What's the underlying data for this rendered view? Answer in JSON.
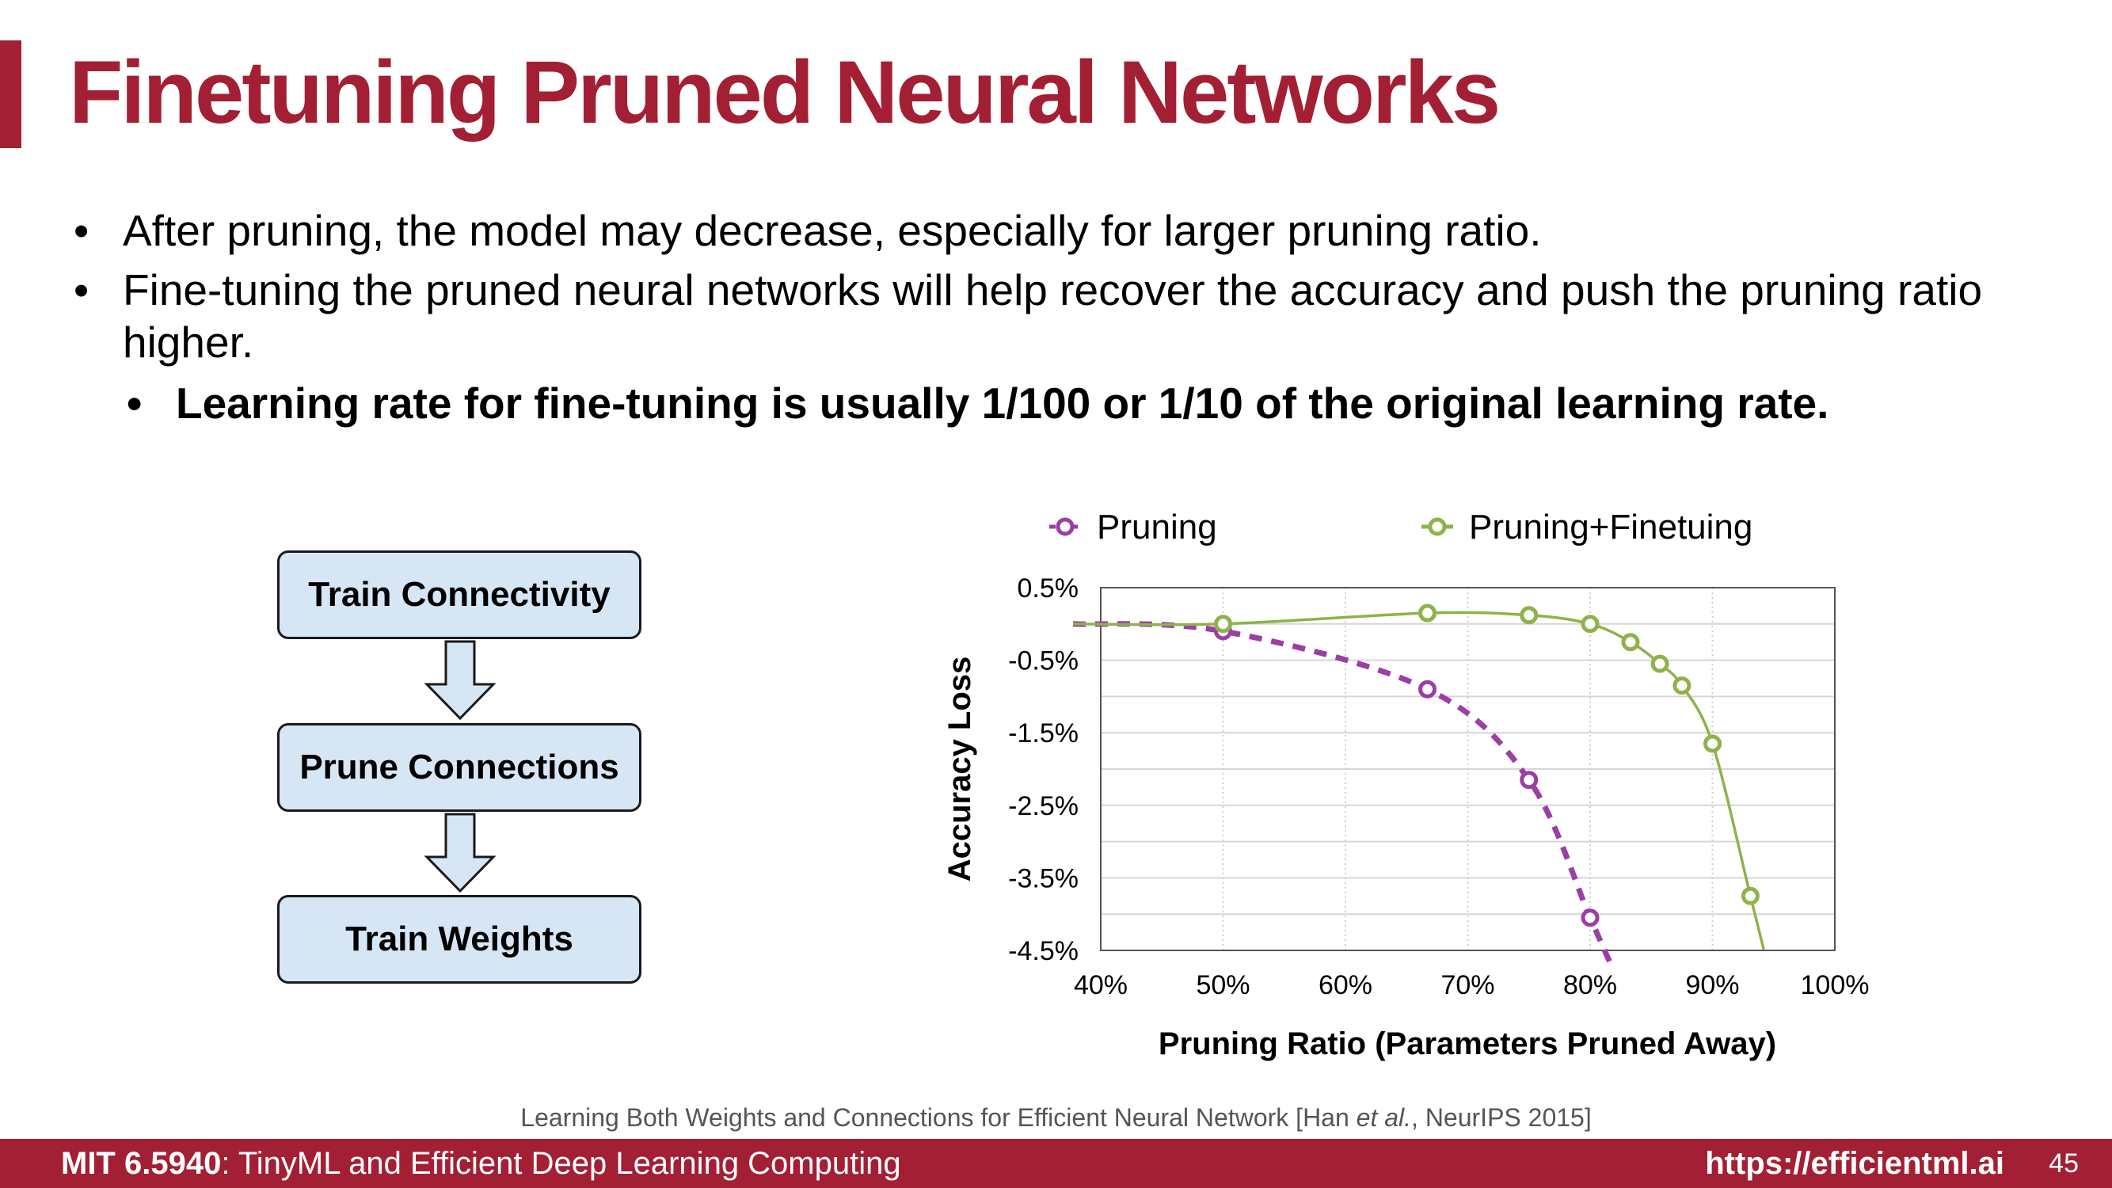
{
  "slide": {
    "title": "Finetuning Pruned Neural Networks",
    "bullet_char": "•",
    "bullets": [
      "After pruning, the model may decrease, especially for larger pruning ratio.",
      "Fine-tuning the pruned neural networks will help recover the accuracy and push the pruning ratio higher."
    ],
    "sub_bullet": "Learning rate for fine-tuning is usually 1/100 or 1/10 of the original learning rate."
  },
  "flow": {
    "steps": [
      "Train Connectivity",
      "Prune Connections",
      "Train Weights"
    ],
    "box_color": "#d6e6f5"
  },
  "chart_data": {
    "type": "line",
    "xlabel": "Pruning Ratio (Parameters Pruned Away)",
    "ylabel": "Accuracy Loss",
    "xlim": [
      40,
      100
    ],
    "ylim": [
      -4.5,
      0.5
    ],
    "xticks": [
      "40%",
      "50%",
      "60%",
      "70%",
      "80%",
      "90%",
      "100%"
    ],
    "yticks": [
      "0.5%",
      "-0.5%",
      "-1.5%",
      "-2.5%",
      "-3.5%",
      "-4.5%"
    ],
    "grid": true,
    "legend_position": "top",
    "series": [
      {
        "name": "Pruning",
        "color": "#9b3fa4",
        "style": "dashed",
        "x": [
          50,
          66.7,
          75,
          80
        ],
        "y": [
          -0.1,
          -0.9,
          -2.15,
          -4.05
        ]
      },
      {
        "name": "Pruning+Finetuing",
        "color": "#8fb24a",
        "style": "solid",
        "x": [
          50,
          66.7,
          75,
          80,
          83.3,
          85.7,
          87.5,
          90,
          93.1
        ],
        "y": [
          0.0,
          0.15,
          0.12,
          0.0,
          -0.25,
          -0.55,
          -0.85,
          -1.65,
          -3.75
        ]
      }
    ]
  },
  "citation": {
    "text_before": "Learning Both Weights and Connections for Efficient Neural Network [Han ",
    "text_italic": "et al.",
    "text_after": ", NeurIPS 2015]"
  },
  "footer": {
    "course_code": "MIT 6.5940",
    "course_name": ": TinyML and Efficient Deep Learning Computing",
    "url": "https://efficientml.ai",
    "page": "45",
    "color": "#a31f34"
  }
}
